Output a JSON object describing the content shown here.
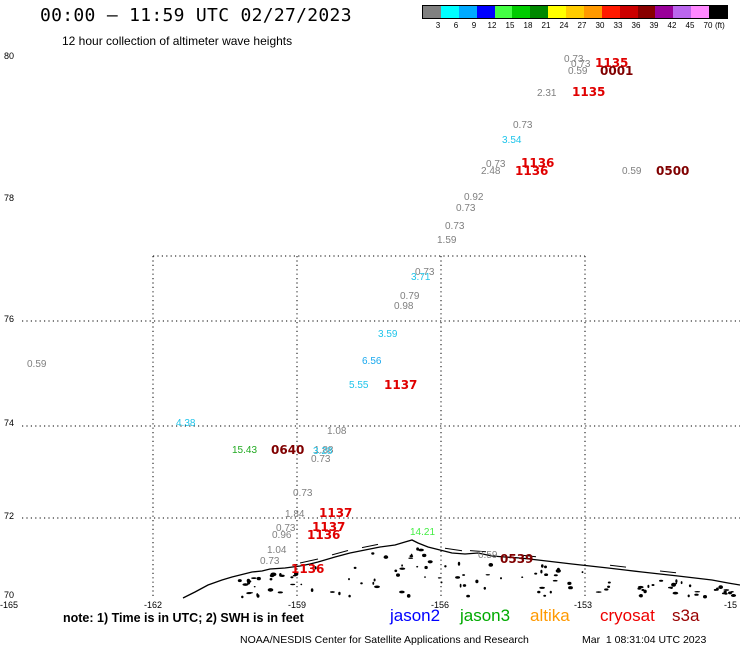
{
  "header": {
    "title": "00:00 – 11:59 UTC 02/27/2023",
    "subtitle": "12 hour collection of altimeter wave heights"
  },
  "colorbar": {
    "colors": [
      "#808080",
      "#00ffff",
      "#00aaff",
      "#0000ff",
      "#44ff44",
      "#00cc00",
      "#008800",
      "#ffff00",
      "#ffcc00",
      "#ff9900",
      "#ff1a00",
      "#cc0000",
      "#880000",
      "#990099",
      "#bb66ee",
      "#ff88ff",
      "#000000"
    ],
    "labels": [
      "3",
      "6",
      "9",
      "12",
      "15",
      "18",
      "21",
      "24",
      "27",
      "30",
      "33",
      "36",
      "39",
      "42",
      "45",
      "70"
    ],
    "unit": "(ft)"
  },
  "map": {
    "lat_labels": [
      "80",
      "78",
      "76",
      "74",
      "72",
      "70"
    ],
    "lon_labels": [
      "-165",
      "-162",
      "-159",
      "-156",
      "-153",
      "-15"
    ],
    "wave_heights": [
      {
        "text": "0.73",
        "color": "#7f7f7f"
      },
      {
        "text": "0.73",
        "color": "#7f7f7f"
      },
      {
        "text": "0.59",
        "color": "#7f7f7f"
      },
      {
        "text": "2.31",
        "color": "#7f7f7f"
      },
      {
        "text": "0.73",
        "color": "#7f7f7f"
      },
      {
        "text": "3.54",
        "color": "#1ec4ea"
      },
      {
        "text": "0.73",
        "color": "#7f7f7f"
      },
      {
        "text": "2.48",
        "color": "#7f7f7f"
      },
      {
        "text": "0.59",
        "color": "#7f7f7f"
      },
      {
        "text": "0.92",
        "color": "#7f7f7f"
      },
      {
        "text": "0.73",
        "color": "#7f7f7f"
      },
      {
        "text": "0.73",
        "color": "#7f7f7f"
      },
      {
        "text": "1.59",
        "color": "#7f7f7f"
      },
      {
        "text": "0.73",
        "color": "#7f7f7f"
      },
      {
        "text": "3.71",
        "color": "#1ec4ea"
      },
      {
        "text": "0.79",
        "color": "#7f7f7f"
      },
      {
        "text": "0.98",
        "color": "#7f7f7f"
      },
      {
        "text": "3.59",
        "color": "#1ec4ea"
      },
      {
        "text": "6.56",
        "color": "#19a8ee"
      },
      {
        "text": "5.55",
        "color": "#1ec4ea"
      },
      {
        "text": "0.59",
        "color": "#7f7f7f"
      },
      {
        "text": "4.38",
        "color": "#1ec4ea"
      },
      {
        "text": "1.08",
        "color": "#7f7f7f"
      },
      {
        "text": "15.43",
        "color": "#22aa22"
      },
      {
        "text": "1.88",
        "color": "#7f7f7f"
      },
      {
        "text": "3.28",
        "color": "#1ec4ea"
      },
      {
        "text": "0.73",
        "color": "#7f7f7f"
      },
      {
        "text": "0.73",
        "color": "#7f7f7f"
      },
      {
        "text": "1.84",
        "color": "#7f7f7f"
      },
      {
        "text": "0.73",
        "color": "#7f7f7f"
      },
      {
        "text": "0.96",
        "color": "#7f7f7f"
      },
      {
        "text": "1.04",
        "color": "#7f7f7f"
      },
      {
        "text": "14.21",
        "color": "#44ee44"
      },
      {
        "text": "0.73",
        "color": "#7f7f7f"
      },
      {
        "text": "0.59",
        "color": "#7f7f7f"
      }
    ],
    "pass_times": [
      {
        "text": "1135",
        "color": "#e00000"
      },
      {
        "text": "0001",
        "color": "#800000"
      },
      {
        "text": "1135",
        "color": "#e00000"
      },
      {
        "text": "1136",
        "color": "#e00000"
      },
      {
        "text": "1136",
        "color": "#e00000"
      },
      {
        "text": "0500",
        "color": "#800000"
      },
      {
        "text": "1137",
        "color": "#e00000"
      },
      {
        "text": "0640",
        "color": "#800000"
      },
      {
        "text": "1137",
        "color": "#e00000"
      },
      {
        "text": "1137",
        "color": "#e00000"
      },
      {
        "text": "1136",
        "color": "#e00000"
      },
      {
        "text": "1136",
        "color": "#e00000"
      },
      {
        "text": "0539",
        "color": "#800000"
      }
    ]
  },
  "legend": {
    "note": "note: 1) Time is in UTC; 2) SWH is in feet",
    "satellites": [
      {
        "name": "jason2",
        "color": "#0000ff"
      },
      {
        "name": "jason3",
        "color": "#00aa00"
      },
      {
        "name": "altika",
        "color": "#ff9900"
      },
      {
        "name": "cryosat",
        "color": "#ee0000"
      },
      {
        "name": "s3a",
        "color": "#990000"
      }
    ]
  },
  "footer": {
    "credit": "NOAA/NESDIS Center for Satellite Applications and Research",
    "timestamp": "Mar  1 08:31:04 UTC 2023"
  }
}
